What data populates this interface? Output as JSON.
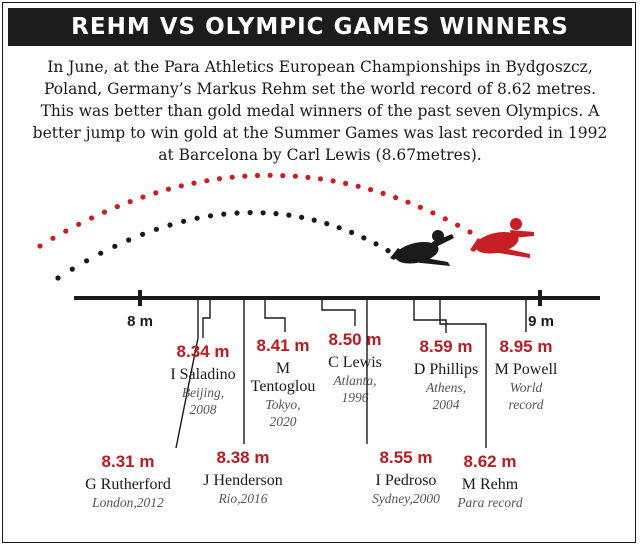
{
  "title": "REHM VS OLYMPIC GAMES WINNERS",
  "intro": "In June, at the Para Athletics European Championships in Bydgoszcz, Poland, Germany’s Markus Rehm set the world record of 8.62 metres. This was better than gold medal winners of the past seven Olympics. A better jump to win gold at the Summer Games was last recorded in 1992 at Barcelona by Carl Lewis (8.67metres).",
  "colors": {
    "highlight": "#b51c24",
    "ink": "#1a1a1a",
    "bar": "#1c1c1c"
  },
  "icons": {
    "black_jumper": "long-jumper-black-icon",
    "red_jumper": "long-jumper-red-icon"
  },
  "chart_data": {
    "type": "number-line",
    "axis": {
      "min_tick": 8,
      "max_tick": 9,
      "tick_labels": [
        "8 m",
        "9 m"
      ]
    },
    "items": [
      {
        "value": 8.31,
        "label": "8.31 m",
        "name": [
          "G Rutherford"
        ],
        "event": [
          "London,2012"
        ]
      },
      {
        "value": 8.34,
        "label": "8.34 m",
        "name": [
          "I Saladino"
        ],
        "event": [
          "Beijing,",
          "2008"
        ]
      },
      {
        "value": 8.38,
        "label": "8.38 m",
        "name": [
          "J Henderson"
        ],
        "event": [
          "Rio,2016"
        ]
      },
      {
        "value": 8.41,
        "label": "8.41 m",
        "name": [
          "M",
          "Tentoglou"
        ],
        "event": [
          "Tokyo,",
          "2020"
        ]
      },
      {
        "value": 8.5,
        "label": "8.50 m",
        "name": [
          "C Lewis"
        ],
        "event": [
          "Atlanta,",
          "1996"
        ]
      },
      {
        "value": 8.55,
        "label": "8.55 m",
        "name": [
          "I Pedroso"
        ],
        "event": [
          "Sydney,2000"
        ]
      },
      {
        "value": 8.59,
        "label": "8.59 m",
        "name": [
          "D Phillips"
        ],
        "event": [
          "Athens,",
          "2004"
        ]
      },
      {
        "value": 8.62,
        "label": "8.62 m",
        "name": [
          "M Rehm"
        ],
        "event": [
          "Para record"
        ]
      },
      {
        "value": 8.95,
        "label": "8.95 m",
        "name": [
          "M Powell"
        ],
        "event": [
          "World",
          "record"
        ]
      }
    ]
  }
}
